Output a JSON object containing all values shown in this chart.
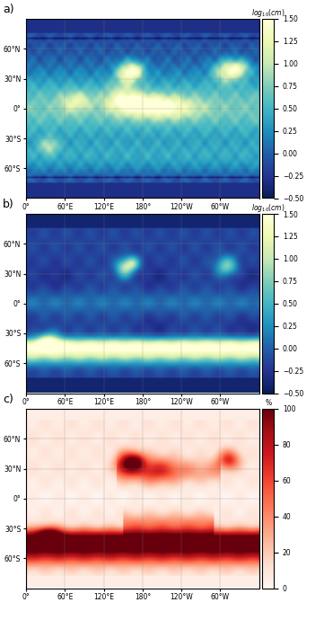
{
  "panel_a": {
    "label": "a)",
    "cmap": "YlGnBu_r",
    "vmin": -0.5,
    "vmax": 1.5,
    "colorbar_label": "$log_{10}(cm)$",
    "colorbar_ticks": [
      -0.5,
      -0.25,
      0.0,
      0.25,
      0.5,
      0.75,
      1.0,
      1.25,
      1.5
    ]
  },
  "panel_b": {
    "label": "b)",
    "cmap": "YlGnBu_r",
    "vmin": -0.5,
    "vmax": 1.5,
    "colorbar_label": "$log_{10}(cm)$",
    "colorbar_ticks": [
      -0.5,
      -0.25,
      0.0,
      0.25,
      0.5,
      0.75,
      1.0,
      1.25,
      1.5
    ]
  },
  "panel_c": {
    "label": "c)",
    "cmap": "Reds",
    "vmin": 0,
    "vmax": 100,
    "colorbar_label": "%",
    "colorbar_ticks": [
      0,
      20,
      40,
      60,
      80,
      100
    ]
  },
  "lon_ticks": [
    0,
    60,
    120,
    180,
    240,
    300
  ],
  "lon_labels": [
    "0°",
    "60°E",
    "120°E",
    "180°",
    "120°W",
    "60°W"
  ],
  "lat_ticks": [
    60,
    30,
    0,
    -30,
    -60
  ],
  "lat_labels": [
    "60°N",
    "30°N",
    "0°",
    "30°S",
    "60°S"
  ],
  "land_color": "#808080",
  "figsize": [
    3.61,
    7.0
  ],
  "dpi": 100
}
